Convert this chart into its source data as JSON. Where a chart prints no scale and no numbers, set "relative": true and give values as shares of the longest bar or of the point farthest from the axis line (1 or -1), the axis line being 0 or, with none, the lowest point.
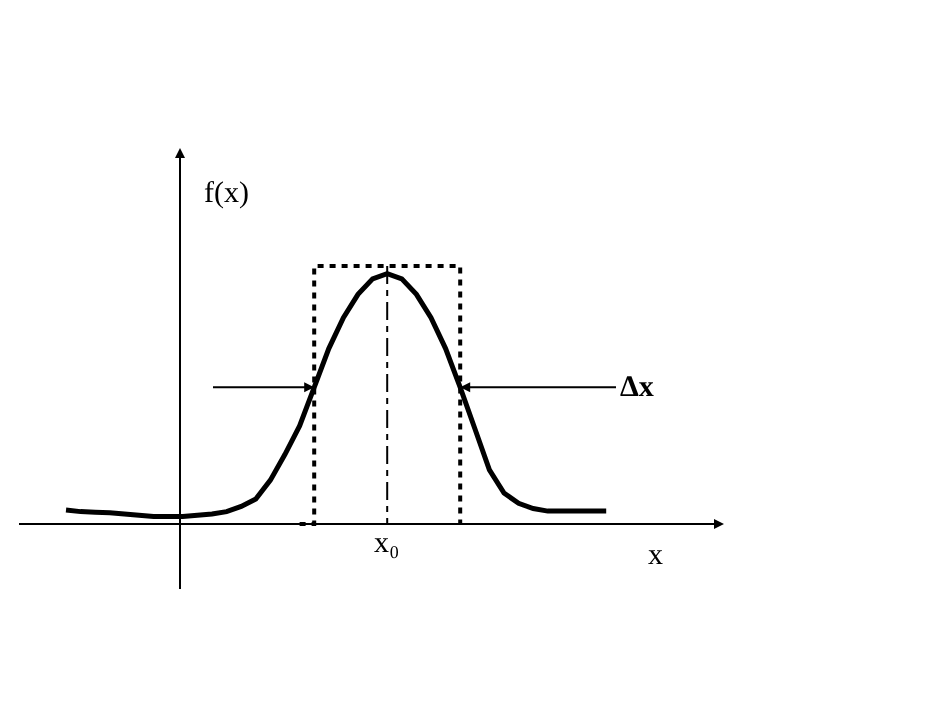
{
  "chart_data": {
    "type": "line",
    "relative": true,
    "xlabel": "x",
    "ylabel": "f(x)",
    "categories": [
      null,
      null,
      null,
      null,
      null,
      null,
      null,
      null,
      null,
      null,
      null,
      null,
      null,
      null,
      null,
      null,
      null,
      null,
      null,
      null,
      null,
      null,
      null,
      null,
      null,
      null,
      null,
      null,
      null,
      null,
      null,
      null,
      null,
      null,
      null,
      null,
      null,
      null
    ],
    "series": [
      {
        "color": "#000000",
        "line_style": "solid",
        "values": [
          0.054,
          0.048,
          0.046,
          0.044,
          0.039,
          0.034,
          0.029,
          0.029,
          0.029,
          0.034,
          0.039,
          0.048,
          0.068,
          0.097,
          0.17,
          0.27,
          0.38,
          0.53,
          0.68,
          0.8,
          0.89,
          0.95,
          0.97,
          0.95,
          0.89,
          0.8,
          0.68,
          0.53,
          0.37,
          0.21,
          0.12,
          0.08,
          0.06,
          0.05,
          0.05,
          0.05,
          0.05,
          0.05
        ]
      },
      {
        "type": "step",
        "color": "#000000",
        "line_style": "dotted",
        "values": [
          null,
          null,
          null,
          null,
          null,
          null,
          null,
          null,
          null,
          null,
          null,
          null,
          null,
          null,
          null,
          null,
          0,
          1,
          1,
          1,
          1,
          1,
          1,
          1,
          1,
          1,
          1,
          0,
          null,
          null,
          null,
          null,
          null,
          null,
          null,
          null,
          null,
          null
        ]
      }
    ],
    "annotations": [
      "x₀",
      "Δx"
    ],
    "legend": false,
    "marker": "none"
  }
}
